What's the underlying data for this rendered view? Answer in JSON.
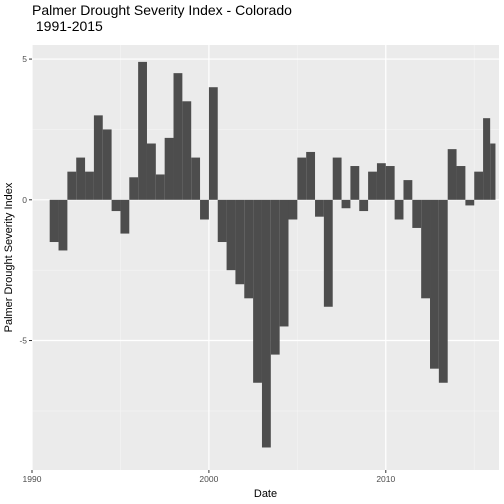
{
  "chart_data": {
    "type": "bar",
    "title": "Palmer Drought Severity Index - Colorado",
    "subtitle": "1991-2015",
    "xlabel": "Date",
    "ylabel": "Palmer Drought Severity Index",
    "x_ticks": [
      "1990",
      "2000",
      "2010"
    ],
    "y_ticks": [
      "-5",
      "0",
      "5"
    ],
    "xlim": [
      1990.0,
      2016.4
    ],
    "ylim": [
      -9.6,
      5.5
    ],
    "grid": true,
    "bar_color": "#4d4d4d",
    "panel_color": "#ebebeb",
    "series": [
      {
        "x": [
          1991.0,
          1991.5,
          1992.0,
          1992.5,
          1993.0,
          1993.5,
          1994.0,
          1994.5,
          1995.0,
          1995.5,
          1996.0,
          1996.5,
          1997.0,
          1997.5,
          1998.0,
          1998.5,
          1999.0,
          1999.5,
          2000.0,
          2000.5,
          2001.0,
          2001.5,
          2002.0,
          2002.5,
          2003.0,
          2003.5,
          2004.0,
          2004.5,
          2005.0,
          2005.5,
          2006.0,
          2006.5,
          2007.0,
          2007.5,
          2008.0,
          2008.5,
          2009.0,
          2009.5,
          2010.0,
          2010.5,
          2011.0,
          2011.5,
          2012.0,
          2012.5,
          2013.0,
          2013.5,
          2014.0,
          2014.5,
          2015.0,
          2015.5,
          2015.9
        ],
        "values": [
          -1.5,
          -1.8,
          1.0,
          1.5,
          1.0,
          3.0,
          2.5,
          -0.4,
          -1.2,
          0.8,
          4.9,
          2.0,
          0.9,
          2.2,
          4.5,
          3.5,
          1.5,
          -0.7,
          4.0,
          -1.5,
          -2.5,
          -3.0,
          -3.5,
          -6.5,
          -8.8,
          -5.5,
          -4.5,
          -0.7,
          1.5,
          1.7,
          -0.6,
          -3.8,
          1.5,
          -0.3,
          1.2,
          -0.4,
          1.0,
          1.3,
          1.2,
          -0.7,
          0.7,
          -1.0,
          -3.5,
          -6.0,
          -6.5,
          1.8,
          1.2,
          -0.2,
          1.0,
          2.9,
          2.0
        ]
      }
    ]
  }
}
